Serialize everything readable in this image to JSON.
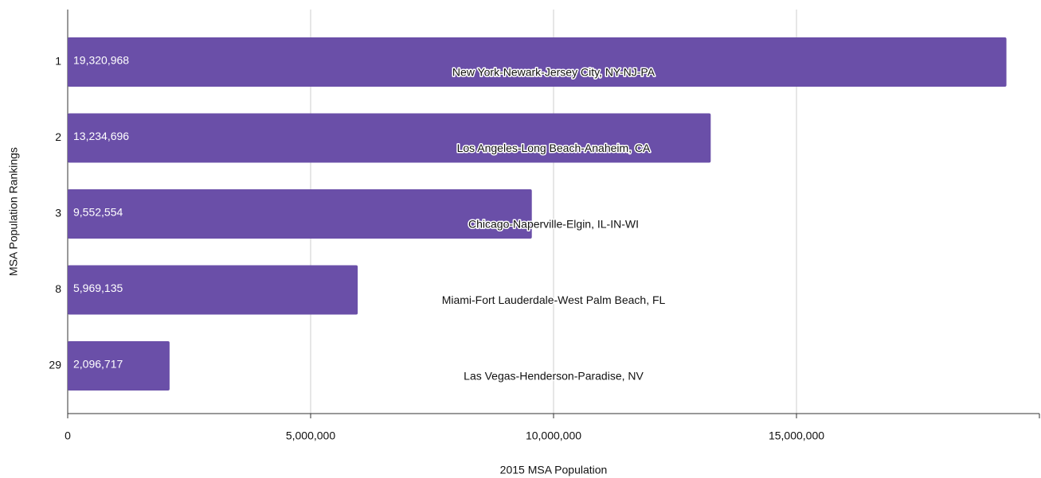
{
  "chart_data": {
    "type": "hbar",
    "x_label": "2015 MSA Population",
    "y_label": "MSA Population Rankings",
    "categories": [
      "1",
      "2",
      "3",
      "8",
      "29"
    ],
    "values": [
      19320968,
      13234696,
      9552554,
      5969135,
      2096717
    ],
    "value_labels": [
      "19,320,968",
      "13,234,696",
      "9,552,554",
      "5,969,135",
      "2,096,717"
    ],
    "annotations": [
      "New York-Newark-Jersey City, NY-NJ-PA",
      "Los Angeles-Long Beach-Anaheim, CA",
      "Chicago-Naperville-Elgin, IL-IN-WI",
      "Miami-Fort Lauderdale-West Palm Beach, FL",
      "Las Vegas-Henderson-Paradise, NV"
    ],
    "color": "#6a4fa8",
    "xlim": [
      0,
      20000000
    ],
    "xticks": [
      0,
      {
        "value": 5000000,
        "label": "5,000,000"
      },
      {
        "value": 10000000,
        "label": "10,000,000"
      },
      {
        "value": 15000000,
        "label": "15,000,000"
      }
    ],
    "grid": true
  }
}
